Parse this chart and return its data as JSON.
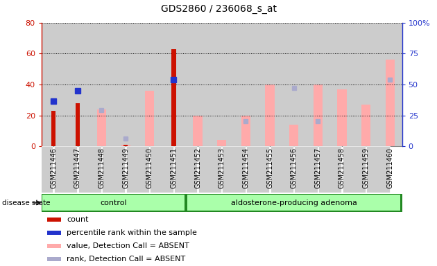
{
  "title": "GDS2860 / 236068_s_at",
  "samples": [
    "GSM211446",
    "GSM211447",
    "GSM211448",
    "GSM211449",
    "GSM211450",
    "GSM211451",
    "GSM211452",
    "GSM211453",
    "GSM211454",
    "GSM211455",
    "GSM211456",
    "GSM211457",
    "GSM211458",
    "GSM211459",
    "GSM211460"
  ],
  "control_count": 6,
  "adenoma_count": 9,
  "count": [
    23,
    28,
    0,
    1,
    0,
    63,
    0,
    0,
    0,
    0,
    0,
    0,
    0,
    0,
    0
  ],
  "percentile_rank": [
    29,
    36,
    0,
    0,
    0,
    43,
    0,
    0,
    0,
    0,
    0,
    0,
    0,
    0,
    0
  ],
  "value_absent": [
    0,
    0,
    24,
    1,
    36,
    0,
    20,
    4,
    20,
    40,
    14,
    40,
    37,
    27,
    56
  ],
  "rank_absent": [
    0,
    0,
    29,
    6,
    0,
    0,
    0,
    0,
    20,
    0,
    47,
    20,
    0,
    0,
    54
  ],
  "ylim_left": [
    0,
    80
  ],
  "ylim_right": [
    0,
    100
  ],
  "yticks_left": [
    0,
    20,
    40,
    60,
    80
  ],
  "yticks_right": [
    0,
    25,
    50,
    75,
    100
  ],
  "color_count": "#cc1100",
  "color_percentile": "#2233cc",
  "color_value_absent": "#ffaaaa",
  "color_rank_absent": "#aaaacc",
  "col_bg_color": "#cccccc",
  "plot_bg_color": "#ffffff",
  "group_border_color": "#228822",
  "group_fill_color": "#aaffaa",
  "group_labels": [
    "control",
    "aldosterone-producing adenoma"
  ],
  "disease_state_label": "disease state",
  "legend_items": [
    {
      "label": "count",
      "color": "#cc1100"
    },
    {
      "label": "percentile rank within the sample",
      "color": "#2233cc"
    },
    {
      "label": "value, Detection Call = ABSENT",
      "color": "#ffaaaa"
    },
    {
      "label": "rank, Detection Call = ABSENT",
      "color": "#aaaacc"
    }
  ]
}
